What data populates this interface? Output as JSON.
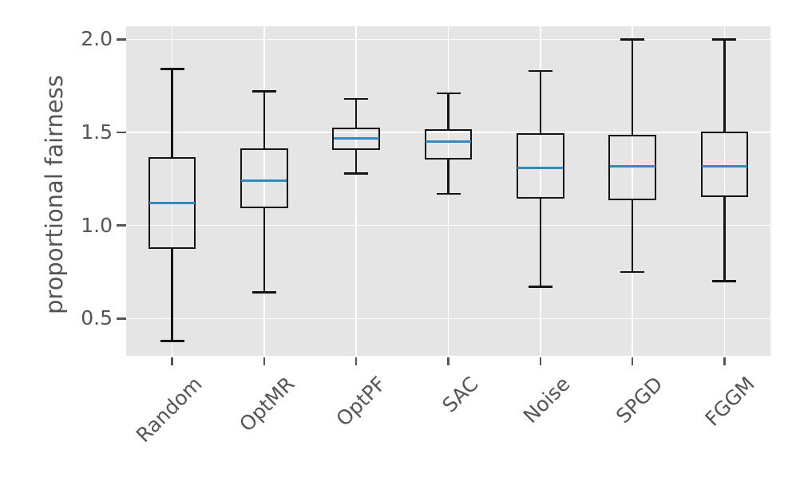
{
  "chart_data": {
    "type": "boxplot",
    "title": "",
    "xlabel": "",
    "ylabel": "proportional fairness",
    "categories": [
      "Random",
      "OptMR",
      "OptPF",
      "SAC",
      "Noise",
      "SPGD",
      "FGGM"
    ],
    "series": [
      {
        "name": "Random",
        "whisker_low": 0.38,
        "q1": 0.88,
        "median": 1.12,
        "q3": 1.36,
        "whisker_high": 1.84
      },
      {
        "name": "OptMR",
        "whisker_low": 0.64,
        "q1": 1.1,
        "median": 1.24,
        "q3": 1.41,
        "whisker_high": 1.72
      },
      {
        "name": "OptPF",
        "whisker_low": 1.28,
        "q1": 1.41,
        "median": 1.47,
        "q3": 1.52,
        "whisker_high": 1.68
      },
      {
        "name": "SAC",
        "whisker_low": 1.17,
        "q1": 1.36,
        "median": 1.45,
        "q3": 1.51,
        "whisker_high": 1.71
      },
      {
        "name": "Noise",
        "whisker_low": 0.67,
        "q1": 1.15,
        "median": 1.31,
        "q3": 1.49,
        "whisker_high": 1.83
      },
      {
        "name": "SPGD",
        "whisker_low": 0.75,
        "q1": 1.14,
        "median": 1.32,
        "q3": 1.48,
        "whisker_high": 2.0
      },
      {
        "name": "FGGM",
        "whisker_low": 0.7,
        "q1": 1.16,
        "median": 1.32,
        "q3": 1.5,
        "whisker_high": 2.0
      }
    ],
    "yticks": [
      0.5,
      1.0,
      1.5,
      2.0
    ],
    "ytick_labels": [
      "0.5",
      "1.0",
      "1.5",
      "2.0"
    ],
    "ylim": [
      0.3,
      2.07
    ],
    "grid": true,
    "grid_style": "white-on-gray",
    "legend": null
  },
  "colors": {
    "plot_background": "#e5e5e5",
    "grid": "#ffffff",
    "box_line": "#141414",
    "median": "#348abd",
    "text": "#555555"
  }
}
